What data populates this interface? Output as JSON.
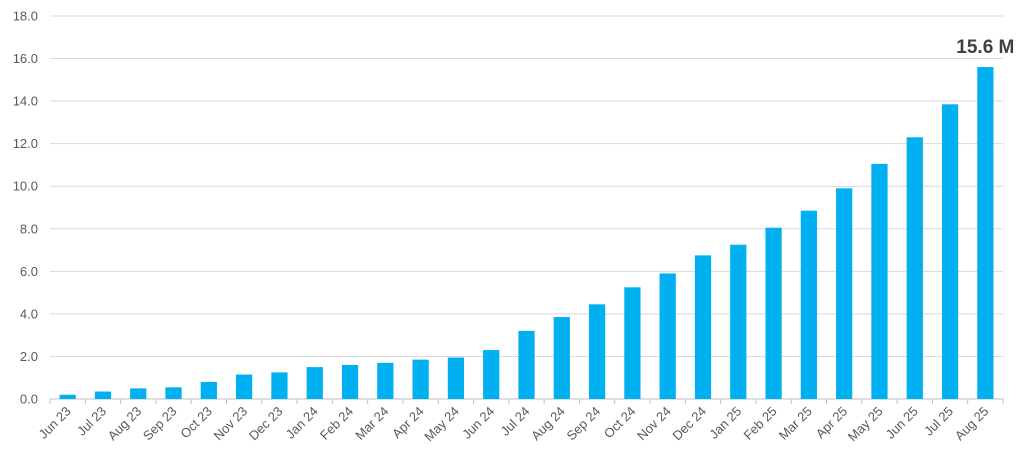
{
  "chart_data": {
    "type": "bar",
    "categories": [
      "Jun 23",
      "Jul 23",
      "Aug 23",
      "Sep 23",
      "Oct 23",
      "Nov 23",
      "Dec 23",
      "Jan 24",
      "Feb 24",
      "Mar 24",
      "Apr 24",
      "May 24",
      "Jun 24",
      "Jul 24",
      "Aug 24",
      "Sep 24",
      "Oct 24",
      "Nov 24",
      "Dec 24",
      "Jan 25",
      "Feb 25",
      "Mar 25",
      "Apr 25",
      "May 25",
      "Jun 25",
      "Jul 25",
      "Aug 25"
    ],
    "values": [
      0.2,
      0.35,
      0.5,
      0.55,
      0.8,
      1.15,
      1.25,
      1.5,
      1.6,
      1.7,
      1.85,
      1.95,
      2.3,
      3.2,
      3.85,
      4.45,
      5.25,
      5.9,
      6.75,
      7.25,
      8.05,
      8.85,
      9.9,
      11.05,
      12.3,
      13.85,
      15.6
    ],
    "y_ticks": [
      "0.0",
      "2.0",
      "4.0",
      "6.0",
      "8.0",
      "10.0",
      "12.0",
      "14.0",
      "16.0",
      "18.0"
    ],
    "ylim": [
      0,
      18
    ],
    "grid": true,
    "legend": "none",
    "title": "",
    "xlabel": "",
    "ylabel": "",
    "colors": {
      "bar": "#00b0f0"
    },
    "annotations": [
      {
        "category": "Aug 25",
        "text": "15.6 M"
      }
    ]
  }
}
